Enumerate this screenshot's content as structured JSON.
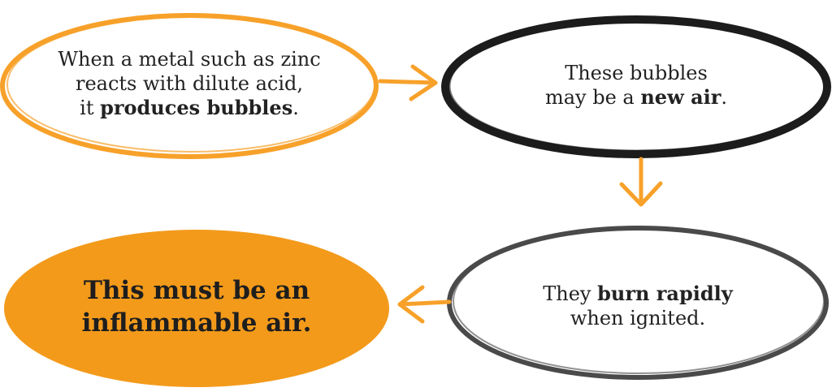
{
  "colors": {
    "orange": "#F7A12A",
    "fill_orange": "#F39A1B",
    "black": "#1c1c1c",
    "dark_gray": "#4a4a4a"
  },
  "nodes": [
    {
      "id": "zinc-reaction",
      "line1": "When a metal such as zinc",
      "line2": "reacts with dilute acid,",
      "line3_prefix": "it ",
      "line3_bold": "produces bubbles",
      "line3_suffix": "."
    },
    {
      "id": "new-air",
      "line1": "These bubbles",
      "line2_prefix": "may be a ",
      "line2_bold": "new air",
      "line2_suffix": "."
    },
    {
      "id": "burn-rapidly",
      "line1_prefix": "They ",
      "line1_bold": "burn rapidly",
      "line2": "when ignited."
    },
    {
      "id": "conclusion",
      "line1": "This must be an",
      "line2": "inflammable air."
    }
  ],
  "flow": [
    {
      "from": "zinc-reaction",
      "to": "new-air",
      "direction": "right"
    },
    {
      "from": "new-air",
      "to": "burn-rapidly",
      "direction": "down"
    },
    {
      "from": "burn-rapidly",
      "to": "conclusion",
      "direction": "left"
    }
  ]
}
